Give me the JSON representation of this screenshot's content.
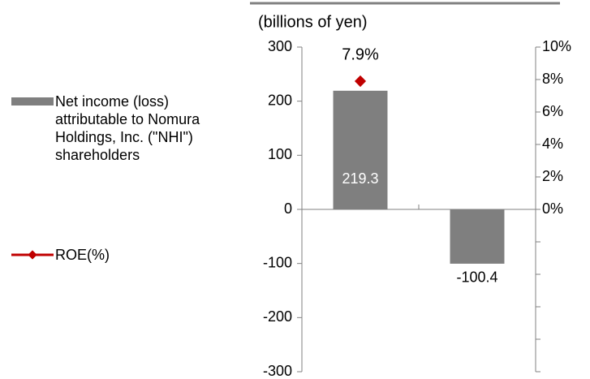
{
  "chart_data": {
    "type": "bar",
    "y_label": "(billions of yen)",
    "categories": [
      null,
      null
    ],
    "series": [
      {
        "name": "Net income (loss) attributable to Nomura Holdings, Inc. (\"NHI\") shareholders",
        "type": "bar",
        "color": "#7f7f7f",
        "values": [
          219.3,
          -100.4
        ]
      },
      {
        "name": "ROE(%)",
        "type": "line",
        "axis": "y2",
        "color": "#c00000",
        "values": [
          7.9,
          null
        ],
        "value_labels": [
          "7.9%",
          null
        ]
      }
    ],
    "ylim": [
      -300,
      300
    ],
    "yticks": [
      -300,
      -200,
      -100,
      0,
      100,
      200,
      300
    ],
    "y2lim": [
      -10,
      10
    ],
    "y2ticks": [
      {
        "value": 0,
        "label": "0%"
      },
      {
        "value": 2,
        "label": "2%"
      },
      {
        "value": 4,
        "label": "4%"
      },
      {
        "value": 6,
        "label": "6%"
      },
      {
        "value": 8,
        "label": "8%"
      },
      {
        "value": 10,
        "label": "10%"
      }
    ],
    "y2minor_ticks": [
      -2,
      -4,
      -6,
      -8,
      -10
    ],
    "legend": "left"
  }
}
